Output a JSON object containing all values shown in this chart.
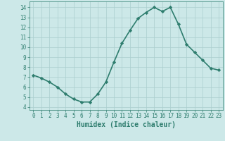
{
  "x": [
    0,
    1,
    2,
    3,
    4,
    5,
    6,
    7,
    8,
    9,
    10,
    11,
    12,
    13,
    14,
    15,
    16,
    17,
    18,
    19,
    20,
    21,
    22,
    23
  ],
  "y": [
    7.2,
    6.9,
    6.5,
    6.0,
    5.3,
    4.8,
    4.5,
    4.5,
    5.3,
    6.5,
    8.5,
    10.4,
    11.7,
    12.9,
    13.5,
    14.0,
    13.6,
    14.0,
    12.3,
    10.3,
    9.5,
    8.7,
    7.9,
    7.7
  ],
  "line_color": "#2e7d6e",
  "marker": "D",
  "marker_size": 2.2,
  "bg_color": "#cce8e8",
  "grid_color": "#aacece",
  "xlabel": "Humidex (Indice chaleur)",
  "xlim": [
    -0.5,
    23.5
  ],
  "ylim": [
    3.7,
    14.6
  ],
  "yticks": [
    4,
    5,
    6,
    7,
    8,
    9,
    10,
    11,
    12,
    13,
    14
  ],
  "xticks": [
    0,
    1,
    2,
    3,
    4,
    5,
    6,
    7,
    8,
    9,
    10,
    11,
    12,
    13,
    14,
    15,
    16,
    17,
    18,
    19,
    20,
    21,
    22,
    23
  ],
  "tick_fontsize": 5.5,
  "xlabel_fontsize": 7,
  "linewidth": 1.2
}
